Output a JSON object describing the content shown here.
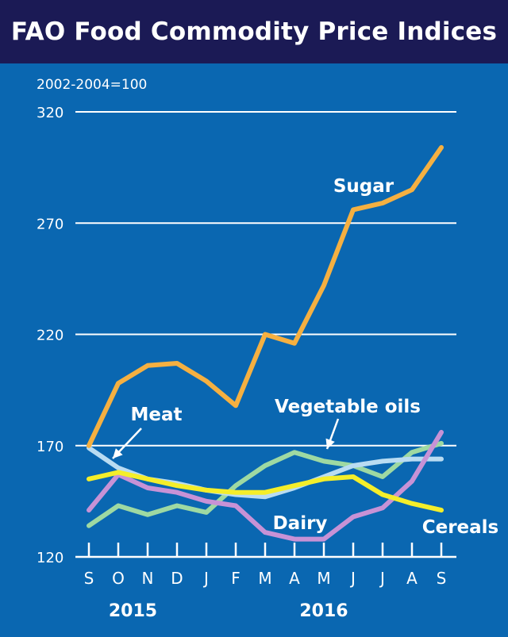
{
  "chart_data": {
    "type": "line",
    "title": "FAO Food Commodity Price Indices",
    "ylabel": "2002-2004=100",
    "ylim": [
      120,
      320
    ],
    "yticks": [
      120,
      170,
      220,
      270,
      320
    ],
    "categories": [
      "S",
      "O",
      "N",
      "D",
      "J",
      "F",
      "M",
      "A",
      "M",
      "J",
      "J",
      "A",
      "S"
    ],
    "year_labels": [
      {
        "label": "2015",
        "category_index": 1.5
      },
      {
        "label": "2016",
        "category_index": 8
      }
    ],
    "series": [
      {
        "name": "Sugar",
        "color": "#f5b041",
        "values": [
          170,
          198,
          206,
          207,
          199,
          188,
          220,
          216,
          242,
          276,
          279,
          285,
          304
        ]
      },
      {
        "name": "Meat",
        "color": "#b9dcf2",
        "values": [
          169,
          160,
          155,
          153,
          150,
          148,
          147,
          151,
          156,
          161,
          163,
          164,
          164
        ]
      },
      {
        "name": "Vegetable oils",
        "color": "#9ed9a2",
        "values": [
          134,
          143,
          139,
          143,
          140,
          152,
          161,
          167,
          163,
          161,
          156,
          167,
          171
        ]
      },
      {
        "name": "Dairy",
        "color": "#c792d6",
        "values": [
          141,
          157,
          151,
          149,
          145,
          143,
          131,
          128,
          128,
          138,
          142,
          154,
          176
        ]
      },
      {
        "name": "Cereals",
        "color": "#f4ee2a",
        "values": [
          155,
          158,
          155,
          152,
          150,
          149,
          149,
          152,
          155,
          156,
          148,
          144,
          141
        ]
      }
    ],
    "annotations": [
      {
        "text": "Sugar",
        "series": "Sugar"
      },
      {
        "text": "Meat",
        "series": "Meat"
      },
      {
        "text": "Vegetable oils",
        "series": "Vegetable oils"
      },
      {
        "text": "Dairy",
        "series": "Dairy"
      },
      {
        "text": "Cereals",
        "series": "Cereals"
      }
    ],
    "grid": true,
    "legend": "none"
  }
}
